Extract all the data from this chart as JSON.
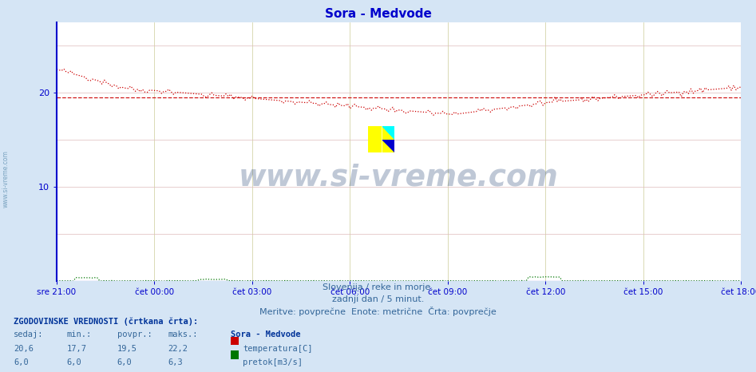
{
  "title": "Sora - Medvode",
  "bg_color": "#d5e5f5",
  "plot_bg_color": "#ffffff",
  "grid_h_color": "#ddbbbb",
  "grid_v_color": "#cccc99",
  "x_labels": [
    "sre 21:00",
    "čet 00:00",
    "čet 03:00",
    "čet 06:00",
    "čet 09:00",
    "čet 12:00",
    "čet 15:00",
    "čet 18:00"
  ],
  "x_ticks_norm": [
    0.0,
    0.142857,
    0.285714,
    0.428571,
    0.571429,
    0.714286,
    0.857143,
    1.0
  ],
  "y_ticks_labeled": [
    10,
    20
  ],
  "y_ticks_grid": [
    0,
    5,
    10,
    15,
    20,
    25
  ],
  "y_min": 0,
  "y_max": 27.5,
  "temp_avg": 19.5,
  "temp_color": "#cc0000",
  "flow_color": "#007700",
  "axis_color": "#0000cc",
  "tick_color": "#0000cc",
  "subtitle_color": "#336699",
  "watermark_text": "www.si-vreme.com",
  "watermark_color": "#1a3a6e",
  "side_watermark_color": "#5588aa",
  "subtitle1": "Slovenija / reke in morje.",
  "subtitle2": "zadnji dan / 5 minut.",
  "subtitle3": "Meritve: povprečne  Enote: metrične  Črta: povprečje",
  "legend_title": "ZGODOVINSKE VREDNOSTI (črtkana črta):",
  "col_headers": [
    "sedaj:",
    "min.:",
    "povpr.:",
    "maks.:"
  ],
  "row1_values": [
    "20,6",
    "17,7",
    "19,5",
    "22,2"
  ],
  "row2_values": [
    "6,0",
    "6,0",
    "6,0",
    "6,3"
  ],
  "station_label": "Sora - Medvode",
  "row1_label": "temperatura[C]",
  "row2_label": "pretok[m3/s]",
  "row1_color": "#cc0000",
  "row2_color": "#007700",
  "n_points": 288,
  "logo_yellow": "#ffff00",
  "logo_cyan": "#00ffff",
  "logo_blue": "#0000cc"
}
